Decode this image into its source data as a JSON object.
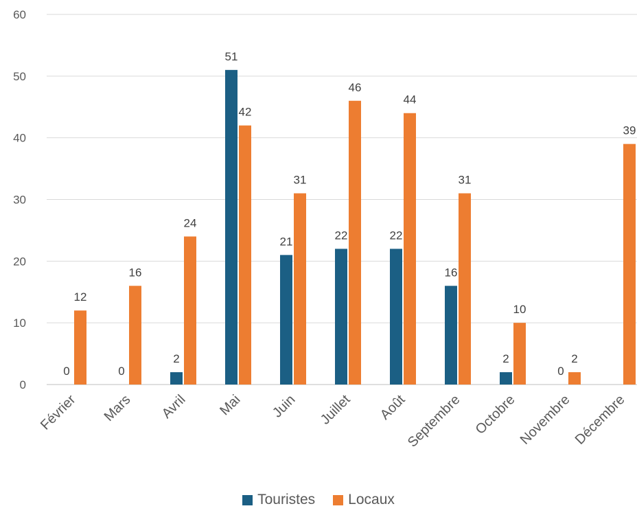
{
  "chart_data": {
    "type": "bar",
    "categories": [
      "Février",
      "Mars",
      "Avril",
      "Mai",
      "Juin",
      "Juillet",
      "Août",
      "Septembre",
      "Octobre",
      "Novembre",
      "Décembre"
    ],
    "series": [
      {
        "name": "Touristes",
        "color": "#1b5f84",
        "values": [
          0,
          0,
          2,
          51,
          21,
          22,
          22,
          16,
          2,
          0,
          null
        ],
        "labels": [
          "0",
          "0",
          "2",
          "51",
          "21",
          "22",
          "22",
          "16",
          "2",
          "0",
          ""
        ]
      },
      {
        "name": "Locaux",
        "color": "#ed7d31",
        "values": [
          12,
          16,
          24,
          42,
          31,
          46,
          44,
          31,
          10,
          2,
          39
        ],
        "labels": [
          "12",
          "16",
          "24",
          "42",
          "31",
          "46",
          "44",
          "31",
          "10",
          "2",
          "39"
        ]
      }
    ],
    "ylim": [
      0,
      60
    ],
    "yticks": [
      "0",
      "10",
      "20",
      "30",
      "40",
      "50",
      "60"
    ],
    "grid": true,
    "legend_position": "bottom"
  }
}
